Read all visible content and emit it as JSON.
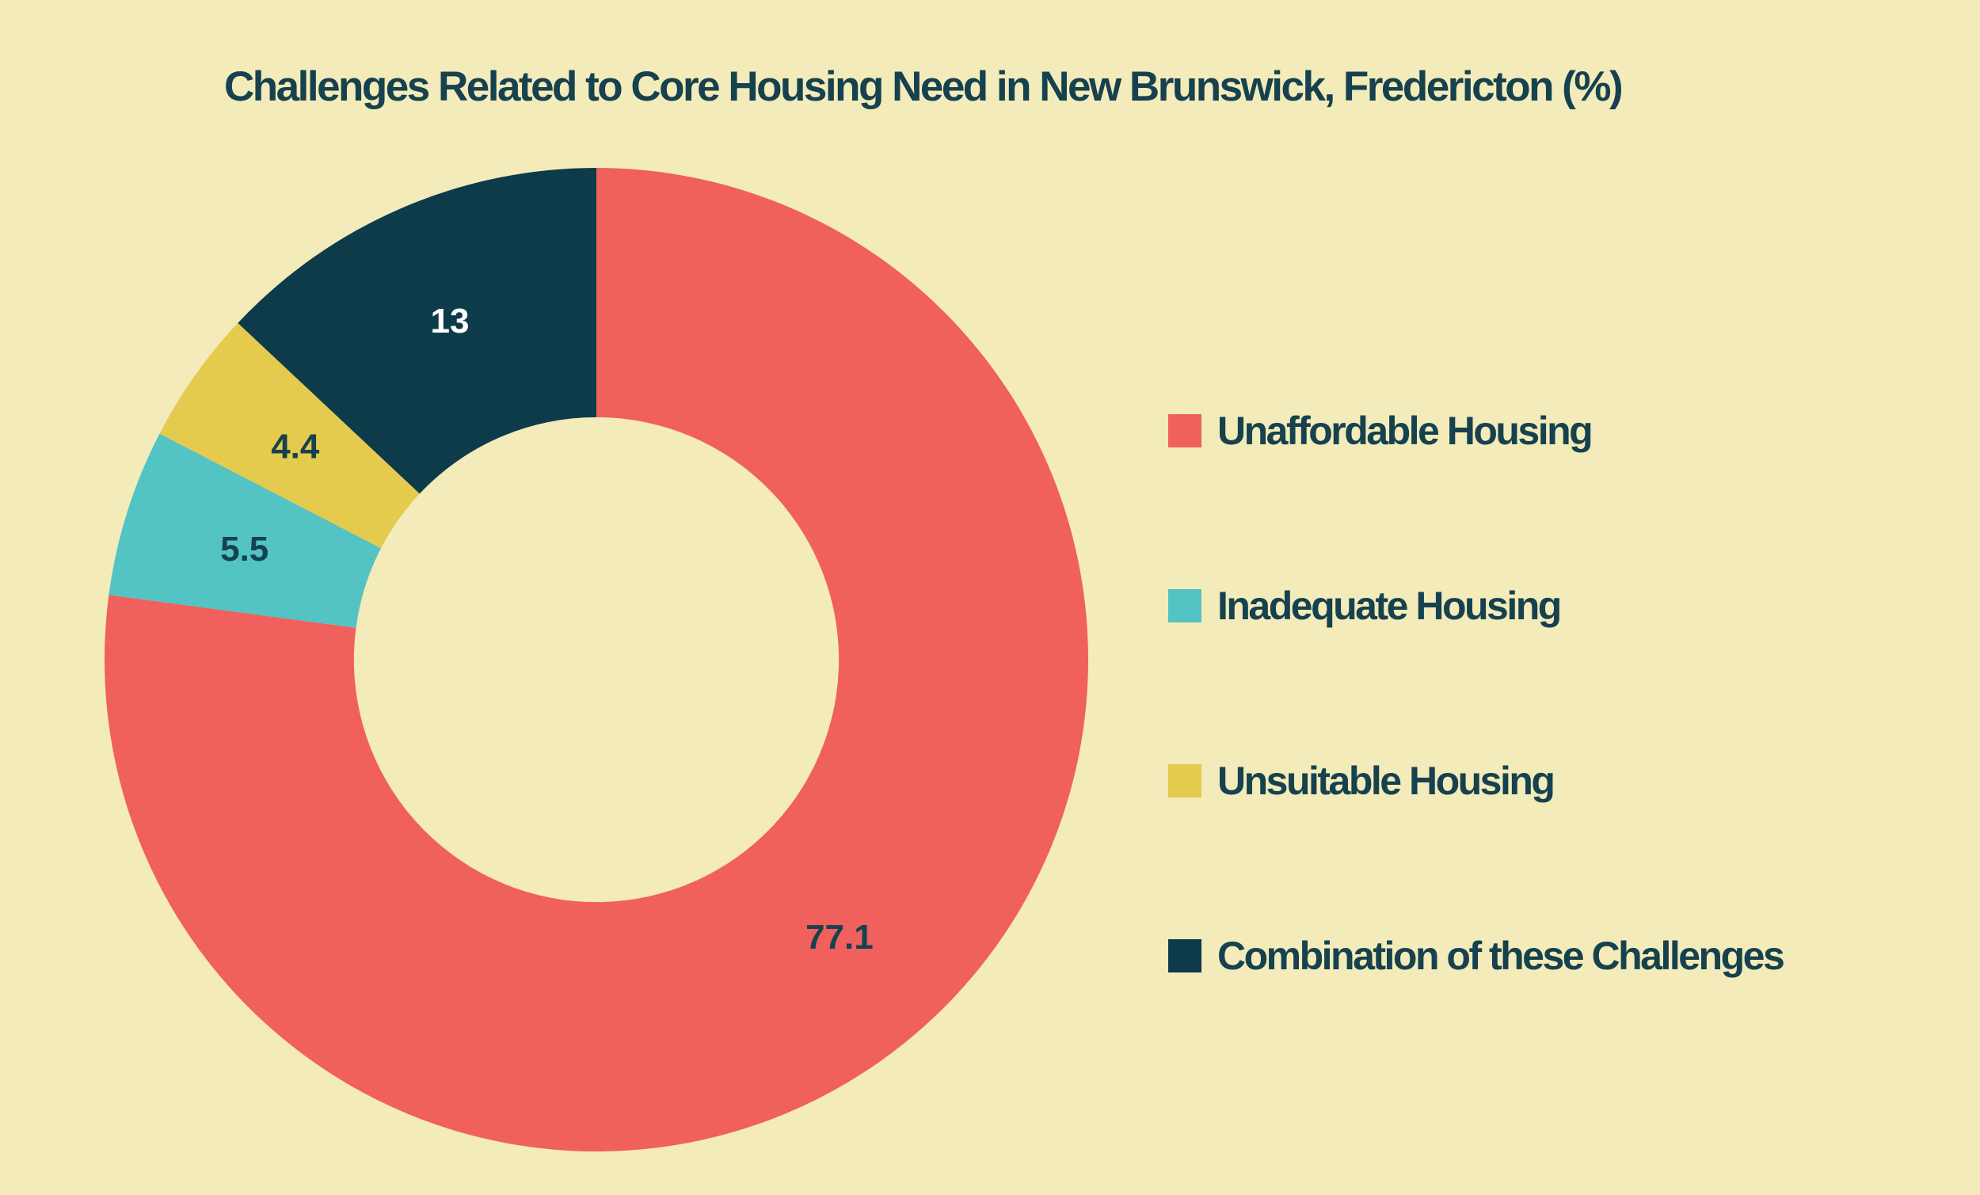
{
  "colors": {
    "background": "#F3EBBA",
    "text": "#16414E"
  },
  "chart_data": {
    "type": "pie",
    "subtype": "donut",
    "title": "Challenges Related to Core Housing Need in New Brunswick, Fredericton (%)",
    "unit": "%",
    "categories": [
      "Unaffordable Housing",
      "Inadequate Housing",
      "Unsuitable Housing",
      "Combination of these Challenges"
    ],
    "values": [
      77.1,
      5.5,
      4.4,
      13
    ],
    "value_labels": [
      "77.1",
      "5.5",
      "4.4",
      "13"
    ],
    "slice_colors": [
      "#F0605C",
      "#53C3C4",
      "#E4CA4D",
      "#0E3B4A"
    ],
    "slice_label_colors": [
      "#16414E",
      "#16414E",
      "#16414E",
      "#FFFFFF"
    ],
    "start_angle_deg": 0,
    "direction": "clockwise",
    "inner_radius_ratio": 0.493,
    "legend_position": "right",
    "grid": false
  }
}
